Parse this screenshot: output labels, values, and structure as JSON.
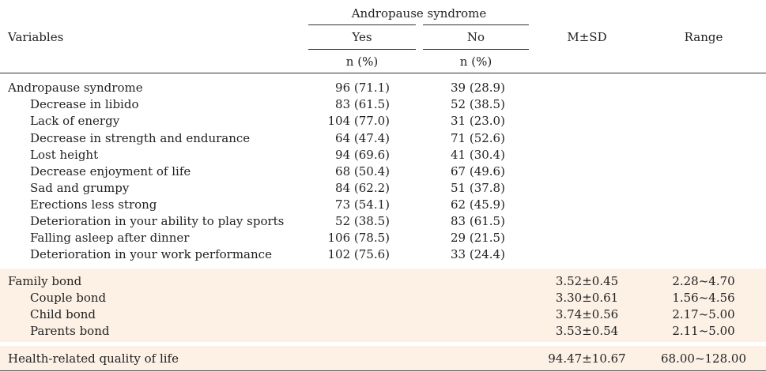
{
  "header": {
    "group_label": "Andropause syndrome",
    "variables": "Variables",
    "yes": "Yes",
    "no": "No",
    "yes_sub": "n (%)",
    "no_sub": "n (%)",
    "msd": "M±SD",
    "range": "Range"
  },
  "section1": {
    "title": {
      "label": "Andropause syndrome",
      "yes": "96 (71.1)",
      "no": "39 (28.9)"
    },
    "rows": [
      {
        "label": "Decrease in libido",
        "yes": "83 (61.5)",
        "no": "52 (38.5)"
      },
      {
        "label": "Lack of energy",
        "yes": "104 (77.0)",
        "no": "31 (23.0)"
      },
      {
        "label": "Decrease in strength and endurance",
        "yes": "64 (47.4)",
        "no": "71 (52.6)"
      },
      {
        "label": "Lost height",
        "yes": "94 (69.6)",
        "no": "41 (30.4)"
      },
      {
        "label": "Decrease enjoyment of life",
        "yes": "68 (50.4)",
        "no": "67 (49.6)"
      },
      {
        "label": "Sad and grumpy",
        "yes": "84 (62.2)",
        "no": "51 (37.8)"
      },
      {
        "label": "Erections less strong",
        "yes": "73 (54.1)",
        "no": "62 (45.9)"
      },
      {
        "label": "Deterioration in your ability to play sports",
        "yes": "52 (38.5)",
        "no": "83 (61.5)"
      },
      {
        "label": "Falling asleep after dinner",
        "yes": "106 (78.5)",
        "no": "29 (21.5)"
      },
      {
        "label": "Deterioration in your work performance",
        "yes": "102 (75.6)",
        "no": "33 (24.4)"
      }
    ]
  },
  "section2": {
    "title": {
      "label": "Family bond",
      "msd": "3.52±0.45",
      "range": "2.28~4.70"
    },
    "rows": [
      {
        "label": "Couple bond",
        "msd": "3.30±0.61",
        "range": "1.56~4.56"
      },
      {
        "label": "Child bond",
        "msd": "3.74±0.56",
        "range": "2.17~5.00"
      },
      {
        "label": "Parents bond",
        "msd": "3.53±0.54",
        "range": "2.11~5.00"
      }
    ]
  },
  "section3": {
    "title": {
      "label": "Health-related quality of life",
      "msd": "94.47±10.67",
      "range": "68.00~128.00"
    }
  }
}
